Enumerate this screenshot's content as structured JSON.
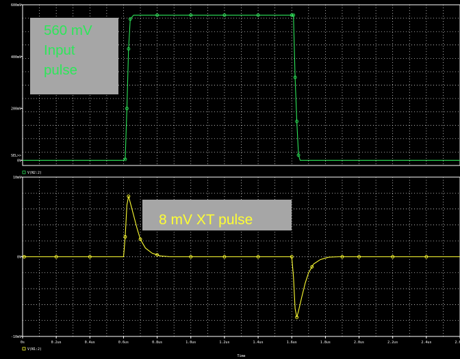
{
  "colors": {
    "background": "#000000",
    "frame": "#ffffff",
    "grid": "#ffffff",
    "trace_input": "#2ee65a",
    "trace_crosstalk": "#ffff33",
    "annotation_box": "#a6a6a6"
  },
  "annotations": {
    "input": {
      "lines": [
        "560 mV",
        "Input",
        "pulse"
      ]
    },
    "crosstalk": {
      "text": "8 mV XT pulse"
    }
  },
  "chart_data": [
    {
      "type": "line",
      "panel": "top",
      "xlabel": "Time",
      "xlim": [
        0,
        2.6
      ],
      "ylim": [
        -20,
        600
      ],
      "x_unit": "us",
      "y_unit": "mV",
      "grid": true,
      "y_tick_labels": [
        {
          "value": 600,
          "label": "600mV"
        },
        {
          "value": 400,
          "label": "400mV"
        },
        {
          "value": 200,
          "label": "200mV"
        },
        {
          "value": 0,
          "label": "0V"
        }
      ],
      "y_marker_label": {
        "value": 20,
        "label": "SEL>>"
      },
      "legend": {
        "text": "V(N2:2)",
        "placement": "bottom-left"
      },
      "series": [
        {
          "name": "V(N2:2)",
          "points": [
            [
              0,
              0
            ],
            [
              0.6,
              0
            ],
            [
              0.61,
              4
            ],
            [
              0.62,
              200
            ],
            [
              0.63,
              430
            ],
            [
              0.64,
              545
            ],
            [
              0.66,
              560
            ],
            [
              1.6,
              560
            ],
            [
              1.61,
              560
            ],
            [
              1.62,
              320
            ],
            [
              1.63,
              150
            ],
            [
              1.64,
              20
            ],
            [
              1.65,
              0
            ],
            [
              2.6,
              0
            ]
          ],
          "marker_x": [
            0.61,
            0.62,
            0.63,
            0.64,
            0.8,
            1.0,
            1.2,
            1.4,
            1.6,
            1.61,
            1.62,
            1.63,
            1.64
          ]
        }
      ]
    },
    {
      "type": "line",
      "panel": "bottom",
      "xlabel": "Time",
      "xlim": [
        0,
        2.6
      ],
      "ylim": [
        -10,
        10
      ],
      "x_unit": "us",
      "y_unit": "mV",
      "grid": true,
      "x_tick_labels": [
        "0s",
        "0.2us",
        "0.4us",
        "0.6us",
        "0.8us",
        "1.0us",
        "1.2us",
        "1.4us",
        "1.6us",
        "1.8us",
        "2.0us",
        "2.2us",
        "2.4us",
        "2.6us"
      ],
      "y_tick_labels": [
        {
          "value": 10,
          "label": "10mV"
        },
        {
          "value": 0,
          "label": "0V"
        },
        {
          "value": -10,
          "label": "-10mV"
        }
      ],
      "legend": {
        "text": "V(N1:2)",
        "placement": "bottom-left"
      },
      "series": [
        {
          "name": "V(N1:2)",
          "points": [
            [
              0,
              0
            ],
            [
              0.6,
              0
            ],
            [
              0.61,
              2.5
            ],
            [
              0.62,
              6.5
            ],
            [
              0.63,
              7.6
            ],
            [
              0.64,
              6.8
            ],
            [
              0.66,
              5.2
            ],
            [
              0.68,
              3.6
            ],
            [
              0.7,
              2.2
            ],
            [
              0.73,
              1.1
            ],
            [
              0.77,
              0.45
            ],
            [
              0.82,
              0.1
            ],
            [
              0.88,
              0
            ],
            [
              1.6,
              0
            ],
            [
              1.61,
              -2.5
            ],
            [
              1.62,
              -6.5
            ],
            [
              1.63,
              -7.6
            ],
            [
              1.64,
              -6.8
            ],
            [
              1.66,
              -5.0
            ],
            [
              1.68,
              -3.3
            ],
            [
              1.7,
              -2.0
            ],
            [
              1.73,
              -0.9
            ],
            [
              1.77,
              -0.35
            ],
            [
              1.82,
              -0.05
            ],
            [
              1.88,
              0
            ],
            [
              2.6,
              0
            ]
          ],
          "marker_x": [
            0.01,
            0.2,
            0.4,
            0.61,
            0.63,
            0.7,
            0.8,
            1.0,
            1.2,
            1.4,
            1.6,
            1.63,
            1.72,
            1.9,
            2.0,
            2.2,
            2.4
          ]
        }
      ]
    }
  ]
}
